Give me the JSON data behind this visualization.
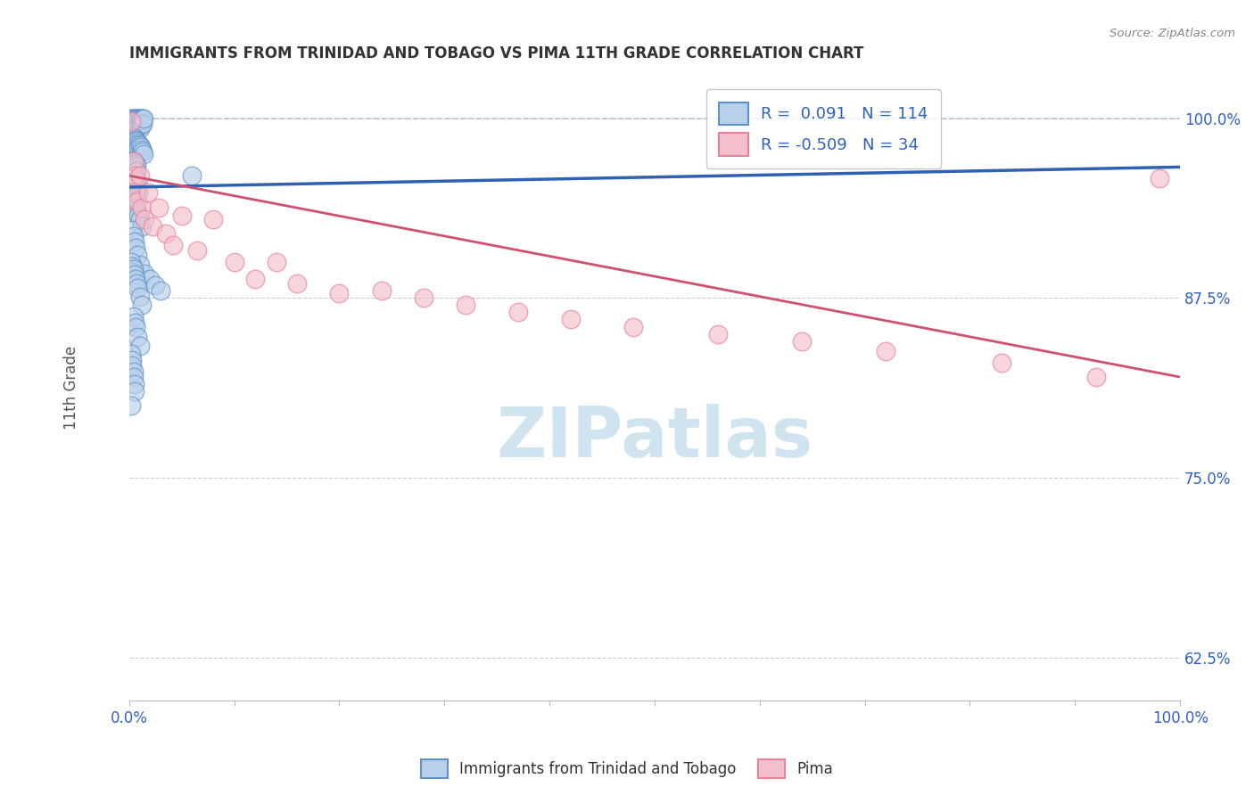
{
  "title": "IMMIGRANTS FROM TRINIDAD AND TOBAGO VS PIMA 11TH GRADE CORRELATION CHART",
  "source": "Source: ZipAtlas.com",
  "ylabel": "11th Grade",
  "xlim": [
    0.0,
    1.0
  ],
  "ylim": [
    0.595,
    1.03
  ],
  "x_tick_positions": [
    0.0,
    0.1,
    0.2,
    0.3,
    0.4,
    0.5,
    0.6,
    0.7,
    0.8,
    0.9,
    1.0
  ],
  "x_tick_labels_ends": [
    "0.0%",
    "100.0%"
  ],
  "y_ticks": [
    0.625,
    0.75,
    0.875,
    1.0
  ],
  "y_tick_labels": [
    "62.5%",
    "75.0%",
    "87.5%",
    "100.0%"
  ],
  "legend_r_blue": "0.091",
  "legend_n_blue": "114",
  "legend_r_pink": "-0.509",
  "legend_n_pink": "34",
  "legend_label_blue": "Immigrants from Trinidad and Tobago",
  "legend_label_pink": "Pima",
  "blue_fill_color": "#b8d0ea",
  "pink_fill_color": "#f4bfcc",
  "blue_edge_color": "#6090c8",
  "pink_edge_color": "#e88098",
  "blue_line_color": "#3060b0",
  "pink_line_color": "#d05070",
  "dashed_line_color": "#b0c8d8",
  "watermark_color": "#d0e4f0",
  "tick_label_color": "#3060c0",
  "title_color": "#333333",
  "source_color": "#888888",
  "ylabel_color": "#555555",
  "blue_scatter_x": [
    0.002,
    0.003,
    0.003,
    0.004,
    0.004,
    0.005,
    0.005,
    0.005,
    0.006,
    0.006,
    0.006,
    0.007,
    0.007,
    0.007,
    0.008,
    0.008,
    0.008,
    0.009,
    0.009,
    0.009,
    0.01,
    0.01,
    0.01,
    0.011,
    0.011,
    0.012,
    0.012,
    0.013,
    0.013,
    0.014,
    0.002,
    0.003,
    0.003,
    0.004,
    0.004,
    0.005,
    0.005,
    0.006,
    0.006,
    0.007,
    0.007,
    0.008,
    0.008,
    0.009,
    0.009,
    0.01,
    0.011,
    0.012,
    0.013,
    0.014,
    0.002,
    0.003,
    0.004,
    0.004,
    0.005,
    0.005,
    0.006,
    0.006,
    0.007,
    0.007,
    0.003,
    0.003,
    0.004,
    0.005,
    0.005,
    0.006,
    0.007,
    0.007,
    0.008,
    0.009,
    0.003,
    0.004,
    0.004,
    0.005,
    0.006,
    0.007,
    0.008,
    0.009,
    0.01,
    0.012,
    0.003,
    0.004,
    0.005,
    0.006,
    0.008,
    0.01,
    0.015,
    0.02,
    0.025,
    0.03,
    0.002,
    0.003,
    0.003,
    0.004,
    0.005,
    0.006,
    0.007,
    0.008,
    0.01,
    0.012,
    0.004,
    0.005,
    0.006,
    0.008,
    0.01,
    0.002,
    0.003,
    0.003,
    0.004,
    0.004,
    0.005,
    0.005,
    0.06,
    0.002
  ],
  "blue_scatter_y": [
    1.0,
    1.0,
    0.998,
    1.0,
    0.997,
    1.0,
    0.996,
    0.993,
    1.0,
    0.997,
    0.994,
    1.0,
    0.997,
    0.994,
    1.0,
    0.997,
    0.994,
    1.0,
    0.997,
    0.994,
    1.0,
    0.997,
    0.993,
    1.0,
    0.996,
    1.0,
    0.996,
    1.0,
    0.996,
    1.0,
    0.987,
    0.985,
    0.983,
    0.987,
    0.984,
    0.986,
    0.983,
    0.985,
    0.982,
    0.984,
    0.981,
    0.983,
    0.98,
    0.982,
    0.979,
    0.981,
    0.98,
    0.978,
    0.977,
    0.975,
    0.97,
    0.968,
    0.97,
    0.966,
    0.969,
    0.965,
    0.968,
    0.964,
    0.967,
    0.963,
    0.956,
    0.953,
    0.955,
    0.957,
    0.952,
    0.955,
    0.957,
    0.95,
    0.953,
    0.948,
    0.942,
    0.944,
    0.94,
    0.942,
    0.938,
    0.936,
    0.934,
    0.932,
    0.93,
    0.925,
    0.922,
    0.918,
    0.914,
    0.91,
    0.905,
    0.898,
    0.892,
    0.888,
    0.884,
    0.88,
    0.9,
    0.897,
    0.893,
    0.895,
    0.891,
    0.888,
    0.885,
    0.882,
    0.876,
    0.87,
    0.862,
    0.858,
    0.855,
    0.848,
    0.842,
    0.836,
    0.832,
    0.828,
    0.824,
    0.82,
    0.815,
    0.81,
    0.96,
    0.8
  ],
  "pink_scatter_x": [
    0.002,
    0.003,
    0.004,
    0.005,
    0.006,
    0.008,
    0.01,
    0.012,
    0.015,
    0.018,
    0.022,
    0.028,
    0.035,
    0.042,
    0.05,
    0.065,
    0.08,
    0.1,
    0.12,
    0.14,
    0.16,
    0.2,
    0.24,
    0.28,
    0.32,
    0.37,
    0.42,
    0.48,
    0.56,
    0.64,
    0.72,
    0.83,
    0.92,
    0.98
  ],
  "pink_scatter_y": [
    0.998,
    0.958,
    0.97,
    0.96,
    0.948,
    0.942,
    0.96,
    0.938,
    0.93,
    0.948,
    0.925,
    0.938,
    0.92,
    0.912,
    0.932,
    0.908,
    0.93,
    0.9,
    0.888,
    0.9,
    0.885,
    0.878,
    0.88,
    0.875,
    0.87,
    0.865,
    0.86,
    0.855,
    0.85,
    0.845,
    0.838,
    0.83,
    0.82,
    0.958
  ],
  "blue_trend_x": [
    0.0,
    1.0
  ],
  "blue_trend_y": [
    0.952,
    0.966
  ],
  "pink_trend_x": [
    0.0,
    1.0
  ],
  "pink_trend_y": [
    0.96,
    0.82
  ]
}
